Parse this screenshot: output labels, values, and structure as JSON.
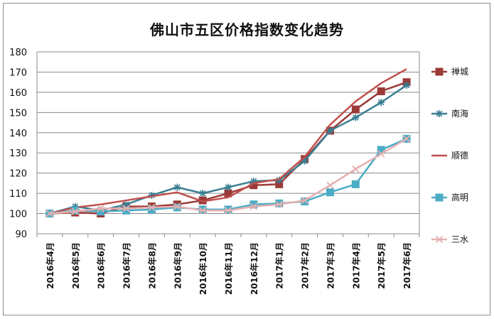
{
  "chart_data": {
    "type": "line",
    "title": "佛山市五区价格指数变化趋势",
    "categories": [
      "2016年4月",
      "2016年5月",
      "2016年6月",
      "2016年7月",
      "2016年8月",
      "2016年9月",
      "2016年10月",
      "2016年11月",
      "2016年12月",
      "2017年1月",
      "2017年2月",
      "2017年3月",
      "2017年4月",
      "2017年5月",
      "2017年6月"
    ],
    "ylim": [
      90,
      180
    ],
    "yticks": [
      90,
      100,
      110,
      120,
      130,
      140,
      150,
      160,
      170,
      180
    ],
    "grid": true,
    "legend_position": "right",
    "series": [
      {
        "name": "禅城",
        "color": "#9b3a36",
        "marker": "square",
        "values": [
          100,
          100.5,
          100,
          103.5,
          103.5,
          104.5,
          106.5,
          110,
          114,
          114.5,
          127,
          141,
          151.5,
          160.5,
          165
        ]
      },
      {
        "name": "南海",
        "color": "#3a7f93",
        "marker": "star",
        "values": [
          100,
          103.5,
          101.5,
          104.5,
          109,
          113,
          110,
          113,
          116,
          116.5,
          126,
          141,
          147.5,
          155,
          163.5
        ]
      },
      {
        "name": "顺德",
        "color": "#c0504d",
        "marker": "none",
        "values": [
          100,
          103,
          104.5,
          106.5,
          108.5,
          110.5,
          106,
          108,
          115,
          117,
          128,
          144,
          155.5,
          164.5,
          171.5
        ]
      },
      {
        "name": "高明",
        "color": "#4bacc6",
        "marker": "square",
        "values": [
          100,
          101.5,
          101,
          101.5,
          102,
          103,
          102,
          102,
          104.5,
          105,
          106,
          110.5,
          114.5,
          131.5,
          137
        ]
      },
      {
        "name": "三水",
        "color": "#e6b0b0",
        "marker": "cross",
        "values": [
          100,
          101,
          102.5,
          102.5,
          103,
          103.5,
          101.5,
          101.5,
          103.5,
          104.5,
          106.5,
          114,
          122,
          129.5,
          137
        ]
      }
    ]
  }
}
